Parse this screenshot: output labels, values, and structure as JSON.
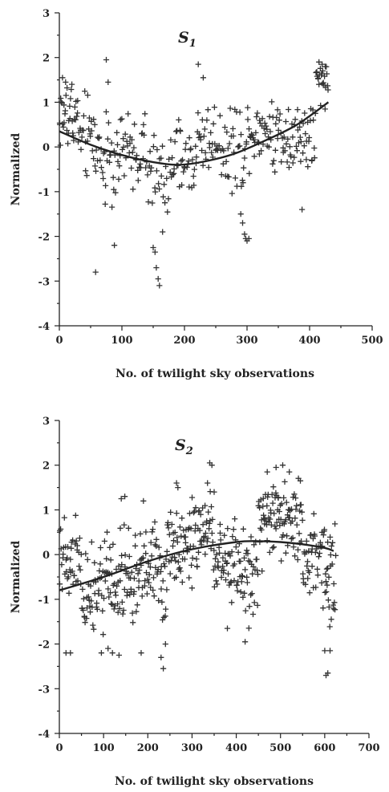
{
  "chart_data": [
    {
      "type": "scatter",
      "title_main": "S",
      "title_sub": "1",
      "xlabel": "No. of twilight sky observations",
      "ylabel": "Normalized",
      "xlim": [
        0,
        500
      ],
      "ylim": [
        -4,
        3
      ],
      "xticks": [
        "0",
        "100",
        "200",
        "300",
        "400",
        "500"
      ],
      "yticks": [
        "3",
        "2",
        "1",
        "0",
        "-1",
        "-2",
        "-3",
        "-4"
      ],
      "marker": "+",
      "segments": [
        {
          "x": [
            0,
            30
          ],
          "center": 0.7,
          "spread": 0.9,
          "n": 32
        },
        {
          "x": [
            30,
            60
          ],
          "center": 0.2,
          "spread": 1.0,
          "n": 28
        },
        {
          "x": [
            60,
            100
          ],
          "center": -0.2,
          "spread": 1.2,
          "n": 35
        },
        {
          "x": [
            100,
            140
          ],
          "center": -0.1,
          "spread": 0.9,
          "n": 34
        },
        {
          "x": [
            140,
            180
          ],
          "center": -0.6,
          "spread": 0.9,
          "n": 30
        },
        {
          "x": [
            180,
            220
          ],
          "center": -0.3,
          "spread": 0.8,
          "n": 36
        },
        {
          "x": [
            220,
            260
          ],
          "center": 0.2,
          "spread": 0.9,
          "n": 34
        },
        {
          "x": [
            260,
            300
          ],
          "center": 0.0,
          "spread": 1.0,
          "n": 34
        },
        {
          "x": [
            300,
            340
          ],
          "center": 0.4,
          "spread": 0.8,
          "n": 36
        },
        {
          "x": [
            340,
            380
          ],
          "center": 0.3,
          "spread": 0.9,
          "n": 36
        },
        {
          "x": [
            380,
            410
          ],
          "center": 0.2,
          "spread": 1.0,
          "n": 28
        },
        {
          "x": [
            410,
            430
          ],
          "center": 1.4,
          "spread": 0.5,
          "n": 22
        }
      ],
      "outliers": [
        {
          "x": 5,
          "y": 1.55
        },
        {
          "x": 10,
          "y": 1.45
        },
        {
          "x": 20,
          "y": 1.4
        },
        {
          "x": 75,
          "y": 1.95
        },
        {
          "x": 78,
          "y": 1.45
        },
        {
          "x": 58,
          "y": -2.8
        },
        {
          "x": 88,
          "y": -2.2
        },
        {
          "x": 150,
          "y": -2.25
        },
        {
          "x": 153,
          "y": -2.35
        },
        {
          "x": 155,
          "y": -2.7
        },
        {
          "x": 158,
          "y": -2.95
        },
        {
          "x": 160,
          "y": -3.1
        },
        {
          "x": 165,
          "y": -1.9
        },
        {
          "x": 222,
          "y": 1.85
        },
        {
          "x": 230,
          "y": 1.55
        },
        {
          "x": 290,
          "y": -1.5
        },
        {
          "x": 293,
          "y": -1.7
        },
        {
          "x": 296,
          "y": -1.95
        },
        {
          "x": 298,
          "y": -2.05
        },
        {
          "x": 300,
          "y": -2.1
        },
        {
          "x": 303,
          "y": -2.05
        },
        {
          "x": 388,
          "y": -1.4
        },
        {
          "x": 415,
          "y": 1.9
        },
        {
          "x": 420,
          "y": 1.85
        },
        {
          "x": 425,
          "y": 1.8
        }
      ],
      "fit": {
        "x": [
          0,
          50,
          100,
          150,
          190,
          230,
          280,
          330,
          380,
          430
        ],
        "y": [
          0.35,
          0.05,
          -0.18,
          -0.34,
          -0.4,
          -0.33,
          -0.15,
          0.15,
          0.5,
          1.0
        ]
      }
    },
    {
      "type": "scatter",
      "title_main": "S",
      "title_sub": "2",
      "xlabel": "No. of twilight sky observations",
      "ylabel": "Normalized",
      "xlim": [
        0,
        700
      ],
      "ylim": [
        -4,
        3
      ],
      "xticks": [
        "0",
        "100",
        "200",
        "300",
        "400",
        "500",
        "600",
        "700"
      ],
      "yticks": [
        "3",
        "2",
        "1",
        "0",
        "-1",
        "-2",
        "-3",
        "-4"
      ],
      "marker": "+",
      "segments": [
        {
          "x": [
            0,
            50
          ],
          "center": 0.0,
          "spread": 1.1,
          "n": 42
        },
        {
          "x": [
            50,
            100
          ],
          "center": -0.9,
          "spread": 1.1,
          "n": 44
        },
        {
          "x": [
            100,
            150
          ],
          "center": -0.5,
          "spread": 1.2,
          "n": 44
        },
        {
          "x": [
            150,
            200
          ],
          "center": -0.5,
          "spread": 1.1,
          "n": 44
        },
        {
          "x": [
            200,
            250
          ],
          "center": -0.3,
          "spread": 1.2,
          "n": 44
        },
        {
          "x": [
            250,
            300
          ],
          "center": 0.3,
          "spread": 1.0,
          "n": 44
        },
        {
          "x": [
            300,
            350
          ],
          "center": 0.6,
          "spread": 1.0,
          "n": 44
        },
        {
          "x": [
            350,
            400
          ],
          "center": 0.0,
          "spread": 1.0,
          "n": 44
        },
        {
          "x": [
            400,
            450
          ],
          "center": -0.5,
          "spread": 1.1,
          "n": 44
        },
        {
          "x": [
            450,
            500
          ],
          "center": 0.7,
          "spread": 1.0,
          "n": 48
        },
        {
          "x": [
            500,
            550
          ],
          "center": 0.8,
          "spread": 0.9,
          "n": 46
        },
        {
          "x": [
            550,
            600
          ],
          "center": 0.0,
          "spread": 1.1,
          "n": 44
        },
        {
          "x": [
            600,
            625
          ],
          "center": -0.6,
          "spread": 1.0,
          "n": 26
        }
      ],
      "outliers": [
        {
          "x": 15,
          "y": -2.2
        },
        {
          "x": 25,
          "y": -2.2
        },
        {
          "x": 95,
          "y": -2.2
        },
        {
          "x": 110,
          "y": -2.1
        },
        {
          "x": 120,
          "y": -2.2
        },
        {
          "x": 135,
          "y": -2.25
        },
        {
          "x": 140,
          "y": 1.25
        },
        {
          "x": 148,
          "y": 1.3
        },
        {
          "x": 185,
          "y": -2.2
        },
        {
          "x": 190,
          "y": 1.2
        },
        {
          "x": 230,
          "y": -2.3
        },
        {
          "x": 235,
          "y": -2.55
        },
        {
          "x": 240,
          "y": -2.0
        },
        {
          "x": 265,
          "y": 1.6
        },
        {
          "x": 268,
          "y": 1.5
        },
        {
          "x": 335,
          "y": 1.6
        },
        {
          "x": 340,
          "y": 2.05
        },
        {
          "x": 345,
          "y": 2.0
        },
        {
          "x": 350,
          "y": 1.4
        },
        {
          "x": 380,
          "y": -1.65
        },
        {
          "x": 420,
          "y": -1.95
        },
        {
          "x": 470,
          "y": 1.85
        },
        {
          "x": 490,
          "y": 1.95
        },
        {
          "x": 505,
          "y": 2.0
        },
        {
          "x": 520,
          "y": 1.85
        },
        {
          "x": 545,
          "y": 1.65
        },
        {
          "x": 600,
          "y": -2.15
        },
        {
          "x": 603,
          "y": -2.7
        },
        {
          "x": 607,
          "y": -2.65
        },
        {
          "x": 612,
          "y": -2.15
        }
      ],
      "fit": {
        "x": [
          0,
          100,
          200,
          300,
          400,
          450,
          500,
          550,
          600,
          620
        ],
        "y": [
          -0.8,
          -0.5,
          -0.15,
          0.12,
          0.28,
          0.3,
          0.28,
          0.23,
          0.15,
          0.08
        ]
      }
    }
  ]
}
